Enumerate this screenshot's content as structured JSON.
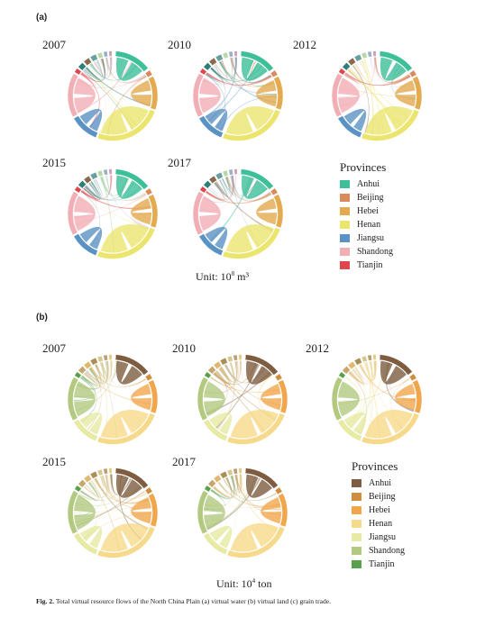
{
  "panels": [
    {
      "tag": "(a)",
      "charts": [
        {
          "year": "2007"
        },
        {
          "year": "2010"
        },
        {
          "year": "2012"
        },
        {
          "year": "2015"
        },
        {
          "year": "2017"
        }
      ],
      "legend": {
        "title": "Provinces",
        "items": [
          {
            "label": "Anhui",
            "color": "#3dbf9a"
          },
          {
            "label": "Beijing",
            "color": "#d98b5e"
          },
          {
            "label": "Hebei",
            "color": "#e3aa4f"
          },
          {
            "label": "Henan",
            "color": "#ebe56e"
          },
          {
            "label": "Jiangsu",
            "color": "#5b92c4"
          },
          {
            "label": "Shandong",
            "color": "#f2aeb5"
          },
          {
            "label": "Tianjin",
            "color": "#e0474c"
          }
        ],
        "others": [
          "#2e7f78",
          "#8a6a4f",
          "#6a9fa0",
          "#b8d8a8",
          "#9ab0c8",
          "#c9a0b8"
        ]
      },
      "unit_prefix": "Unit: 10",
      "unit_exp": "8",
      "unit_suffix": " m³"
    },
    {
      "tag": "(b)",
      "charts": [
        {
          "year": "2007"
        },
        {
          "year": "2010"
        },
        {
          "year": "2012"
        },
        {
          "year": "2015"
        },
        {
          "year": "2017"
        }
      ],
      "legend": {
        "title": "Provinces",
        "items": [
          {
            "label": "Anhui",
            "color": "#7d5c3f"
          },
          {
            "label": "Beijing",
            "color": "#cf8d3e"
          },
          {
            "label": "Hebei",
            "color": "#f2a64c"
          },
          {
            "label": "Henan",
            "color": "#f6d98a"
          },
          {
            "label": "Jiangsu",
            "color": "#e6eaa2"
          },
          {
            "label": "Shandong",
            "color": "#b2c97f"
          },
          {
            "label": "Tianjin",
            "color": "#58a04c"
          }
        ],
        "others": [
          "#c8a56a",
          "#e0b870",
          "#a8905a",
          "#d8c890",
          "#b8a070",
          "#e8c880"
        ]
      },
      "unit_prefix": "Unit: 10",
      "unit_exp": "4",
      "unit_suffix": " ton"
    }
  ],
  "caption": {
    "label": "Fig. 2.",
    "text": "Total virtual resource flows of the North China Plain (a) virtual water (b) virtual land (c) grain trade."
  }
}
